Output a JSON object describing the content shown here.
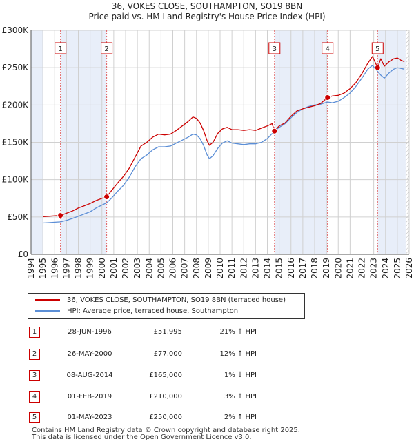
{
  "chart_data": {
    "type": "line",
    "title": "36, VOKES CLOSE, SOUTHAMPTON, SO19 8BN",
    "subtitle": "Price paid vs. HM Land Registry's House Price Index (HPI)",
    "xlabel": "",
    "ylabel": "",
    "xlim": [
      1994,
      2026
    ],
    "ylim": [
      0,
      300000
    ],
    "x_ticks": [
      "1994",
      "1995",
      "1996",
      "1997",
      "1998",
      "1999",
      "2000",
      "2001",
      "2002",
      "2003",
      "2004",
      "2005",
      "2006",
      "2007",
      "2008",
      "2009",
      "2010",
      "2011",
      "2012",
      "2013",
      "2014",
      "2015",
      "2016",
      "2017",
      "2018",
      "2019",
      "2020",
      "2021",
      "2022",
      "2023",
      "2024",
      "2025",
      "2026"
    ],
    "y_ticks": [
      {
        "value": 0,
        "label": "£0"
      },
      {
        "value": 50000,
        "label": "£50K"
      },
      {
        "value": 100000,
        "label": "£100K"
      },
      {
        "value": 150000,
        "label": "£150K"
      },
      {
        "value": 200000,
        "label": "£200K"
      },
      {
        "value": 250000,
        "label": "£250K"
      },
      {
        "value": 300000,
        "label": "£300K"
      }
    ],
    "grid": true,
    "data_window": [
      1995.0,
      2025.7
    ],
    "series": [
      {
        "name": "36, VOKES CLOSE, SOUTHAMPTON, SO19 8BN (terraced house)",
        "color": "#cc0000",
        "points": [
          [
            1995.0,
            50500
          ],
          [
            1995.5,
            51000
          ],
          [
            1996.0,
            51500
          ],
          [
            1996.49,
            51995
          ],
          [
            1997.0,
            55000
          ],
          [
            1997.5,
            58000
          ],
          [
            1998.0,
            62000
          ],
          [
            1998.5,
            65000
          ],
          [
            1999.0,
            68000
          ],
          [
            1999.5,
            72000
          ],
          [
            2000.0,
            75000
          ],
          [
            2000.4,
            77000
          ],
          [
            2000.8,
            85000
          ],
          [
            2001.3,
            95000
          ],
          [
            2001.8,
            104000
          ],
          [
            2002.3,
            115000
          ],
          [
            2002.8,
            130000
          ],
          [
            2003.3,
            145000
          ],
          [
            2003.8,
            150000
          ],
          [
            2004.3,
            157000
          ],
          [
            2004.8,
            161000
          ],
          [
            2005.3,
            160000
          ],
          [
            2005.8,
            161000
          ],
          [
            2006.3,
            166000
          ],
          [
            2006.8,
            172000
          ],
          [
            2007.3,
            178000
          ],
          [
            2007.7,
            184000
          ],
          [
            2008.0,
            182000
          ],
          [
            2008.3,
            176000
          ],
          [
            2008.6,
            166000
          ],
          [
            2008.9,
            152000
          ],
          [
            2009.1,
            146000
          ],
          [
            2009.4,
            150000
          ],
          [
            2009.8,
            162000
          ],
          [
            2010.2,
            168000
          ],
          [
            2010.6,
            170000
          ],
          [
            2011.0,
            167000
          ],
          [
            2011.5,
            167000
          ],
          [
            2012.0,
            166000
          ],
          [
            2012.5,
            167000
          ],
          [
            2013.0,
            166000
          ],
          [
            2013.5,
            169000
          ],
          [
            2014.0,
            172000
          ],
          [
            2014.4,
            175000
          ],
          [
            2014.6,
            165000
          ],
          [
            2015.0,
            172000
          ],
          [
            2015.5,
            176000
          ],
          [
            2016.0,
            185000
          ],
          [
            2016.5,
            192000
          ],
          [
            2017.0,
            195000
          ],
          [
            2017.5,
            197000
          ],
          [
            2018.0,
            199000
          ],
          [
            2018.5,
            202000
          ],
          [
            2019.09,
            210000
          ],
          [
            2019.5,
            212000
          ],
          [
            2020.0,
            213000
          ],
          [
            2020.5,
            216000
          ],
          [
            2021.0,
            222000
          ],
          [
            2021.5,
            230000
          ],
          [
            2022.0,
            242000
          ],
          [
            2022.5,
            256000
          ],
          [
            2022.9,
            265000
          ],
          [
            2023.33,
            250000
          ],
          [
            2023.6,
            262000
          ],
          [
            2023.9,
            252000
          ],
          [
            2024.3,
            258000
          ],
          [
            2024.7,
            262000
          ],
          [
            2025.0,
            263000
          ],
          [
            2025.3,
            260000
          ],
          [
            2025.6,
            258000
          ]
        ]
      },
      {
        "name": "HPI: Average price, terraced house, Southampton",
        "color": "#5b8ed6",
        "points": [
          [
            1995.0,
            42000
          ],
          [
            1995.5,
            42500
          ],
          [
            1996.0,
            43000
          ],
          [
            1996.5,
            43500
          ],
          [
            1997.0,
            45500
          ],
          [
            1997.5,
            48000
          ],
          [
            1998.0,
            51000
          ],
          [
            1998.5,
            54000
          ],
          [
            1999.0,
            57000
          ],
          [
            1999.5,
            62000
          ],
          [
            2000.0,
            66000
          ],
          [
            2000.4,
            69000
          ],
          [
            2000.8,
            75000
          ],
          [
            2001.3,
            84000
          ],
          [
            2001.8,
            92000
          ],
          [
            2002.3,
            103000
          ],
          [
            2002.8,
            117000
          ],
          [
            2003.3,
            128000
          ],
          [
            2003.8,
            133000
          ],
          [
            2004.3,
            140000
          ],
          [
            2004.8,
            144000
          ],
          [
            2005.3,
            144000
          ],
          [
            2005.8,
            145000
          ],
          [
            2006.3,
            149000
          ],
          [
            2006.8,
            153000
          ],
          [
            2007.3,
            157000
          ],
          [
            2007.7,
            161000
          ],
          [
            2008.0,
            160000
          ],
          [
            2008.3,
            155000
          ],
          [
            2008.6,
            146000
          ],
          [
            2008.9,
            133000
          ],
          [
            2009.1,
            128000
          ],
          [
            2009.4,
            132000
          ],
          [
            2009.8,
            142000
          ],
          [
            2010.2,
            149000
          ],
          [
            2010.6,
            152000
          ],
          [
            2011.0,
            149000
          ],
          [
            2011.5,
            148000
          ],
          [
            2012.0,
            147000
          ],
          [
            2012.5,
            148000
          ],
          [
            2013.0,
            148000
          ],
          [
            2013.5,
            150000
          ],
          [
            2014.0,
            155000
          ],
          [
            2014.6,
            165000
          ],
          [
            2015.0,
            170000
          ],
          [
            2015.5,
            175000
          ],
          [
            2016.0,
            183000
          ],
          [
            2016.5,
            190000
          ],
          [
            2017.0,
            195000
          ],
          [
            2017.5,
            198000
          ],
          [
            2018.0,
            200000
          ],
          [
            2018.5,
            201000
          ],
          [
            2019.09,
            204000
          ],
          [
            2019.5,
            203000
          ],
          [
            2020.0,
            205000
          ],
          [
            2020.5,
            210000
          ],
          [
            2021.0,
            216000
          ],
          [
            2021.5,
            225000
          ],
          [
            2022.0,
            236000
          ],
          [
            2022.5,
            248000
          ],
          [
            2022.9,
            253000
          ],
          [
            2023.33,
            245000
          ],
          [
            2023.6,
            240000
          ],
          [
            2023.9,
            236000
          ],
          [
            2024.3,
            243000
          ],
          [
            2024.7,
            248000
          ],
          [
            2025.0,
            250000
          ],
          [
            2025.3,
            249000
          ],
          [
            2025.6,
            248000
          ]
        ]
      }
    ],
    "sales": [
      {
        "n": "1",
        "x": 1996.49,
        "value": 51995
      },
      {
        "n": "2",
        "x": 2000.4,
        "value": 77000
      },
      {
        "n": "3",
        "x": 2014.6,
        "value": 165000
      },
      {
        "n": "4",
        "x": 2019.09,
        "value": 210000
      },
      {
        "n": "5",
        "x": 2023.33,
        "value": 250000
      }
    ],
    "shaded_spans": [
      [
        1994,
        1995.0
      ],
      [
        1996.49,
        2000.4
      ],
      [
        2014.6,
        2019.09
      ],
      [
        2023.33,
        2025.7
      ]
    ]
  },
  "legend": {
    "property_label": "36, VOKES CLOSE, SOUTHAMPTON, SO19 8BN (terraced house)",
    "hpi_label": "HPI: Average price, terraced house, Southampton"
  },
  "transactions": [
    {
      "n": "1",
      "date": "28-JUN-1996",
      "price": "£51,995",
      "hpi": "21% ↑ HPI"
    },
    {
      "n": "2",
      "date": "26-MAY-2000",
      "price": "£77,000",
      "hpi": "12% ↑ HPI"
    },
    {
      "n": "3",
      "date": "08-AUG-2014",
      "price": "£165,000",
      "hpi": "1% ↓ HPI"
    },
    {
      "n": "4",
      "date": "01-FEB-2019",
      "price": "£210,000",
      "hpi": "3% ↑ HPI"
    },
    {
      "n": "5",
      "date": "01-MAY-2023",
      "price": "£250,000",
      "hpi": "2% ↑ HPI"
    }
  ],
  "footer": {
    "line1": "Contains HM Land Registry data © Crown copyright and database right 2025.",
    "line2": "This data is licensed under the Open Government Licence v3.0."
  }
}
